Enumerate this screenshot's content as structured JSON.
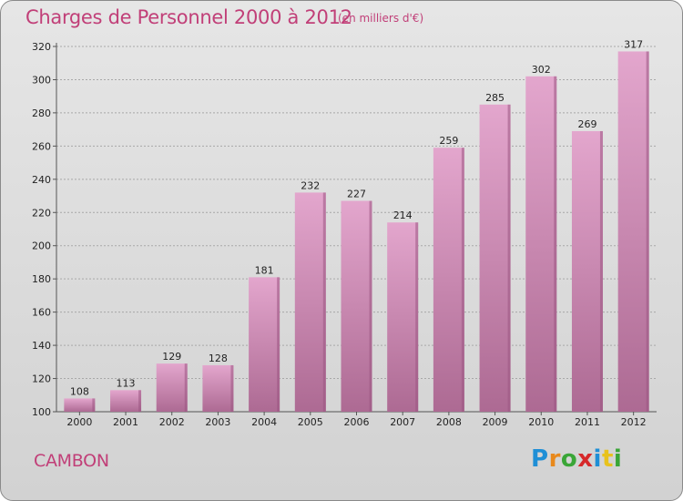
{
  "header": {
    "title": "Charges de Personnel 2000 à 2012",
    "subtitle": "(en milliers d'€)"
  },
  "footer": {
    "commune": "CAMBON",
    "logo": {
      "letters": [
        "P",
        "r",
        "o",
        "x",
        "i",
        "t",
        "i"
      ],
      "colors": [
        "#1f8fd6",
        "#e8891c",
        "#3aa637",
        "#d6282a",
        "#1f8fd6",
        "#e8c21c",
        "#3aa637"
      ]
    }
  },
  "colors": {
    "bar_top": "#e3a6cd",
    "bar_bottom": "#ad6a93",
    "bar_side": "#9b5581",
    "text_accent": "#c13f78"
  },
  "chart_data": {
    "type": "bar",
    "categories": [
      "2000",
      "2001",
      "2002",
      "2003",
      "2004",
      "2005",
      "2006",
      "2007",
      "2008",
      "2009",
      "2010",
      "2011",
      "2012"
    ],
    "values": [
      108,
      113,
      129,
      128,
      181,
      232,
      227,
      214,
      259,
      285,
      302,
      269,
      317
    ],
    "ylim": [
      100,
      320
    ],
    "yticks": [
      100,
      120,
      140,
      160,
      180,
      200,
      220,
      240,
      260,
      280,
      300,
      320
    ],
    "grid": true,
    "data_labels": true
  }
}
